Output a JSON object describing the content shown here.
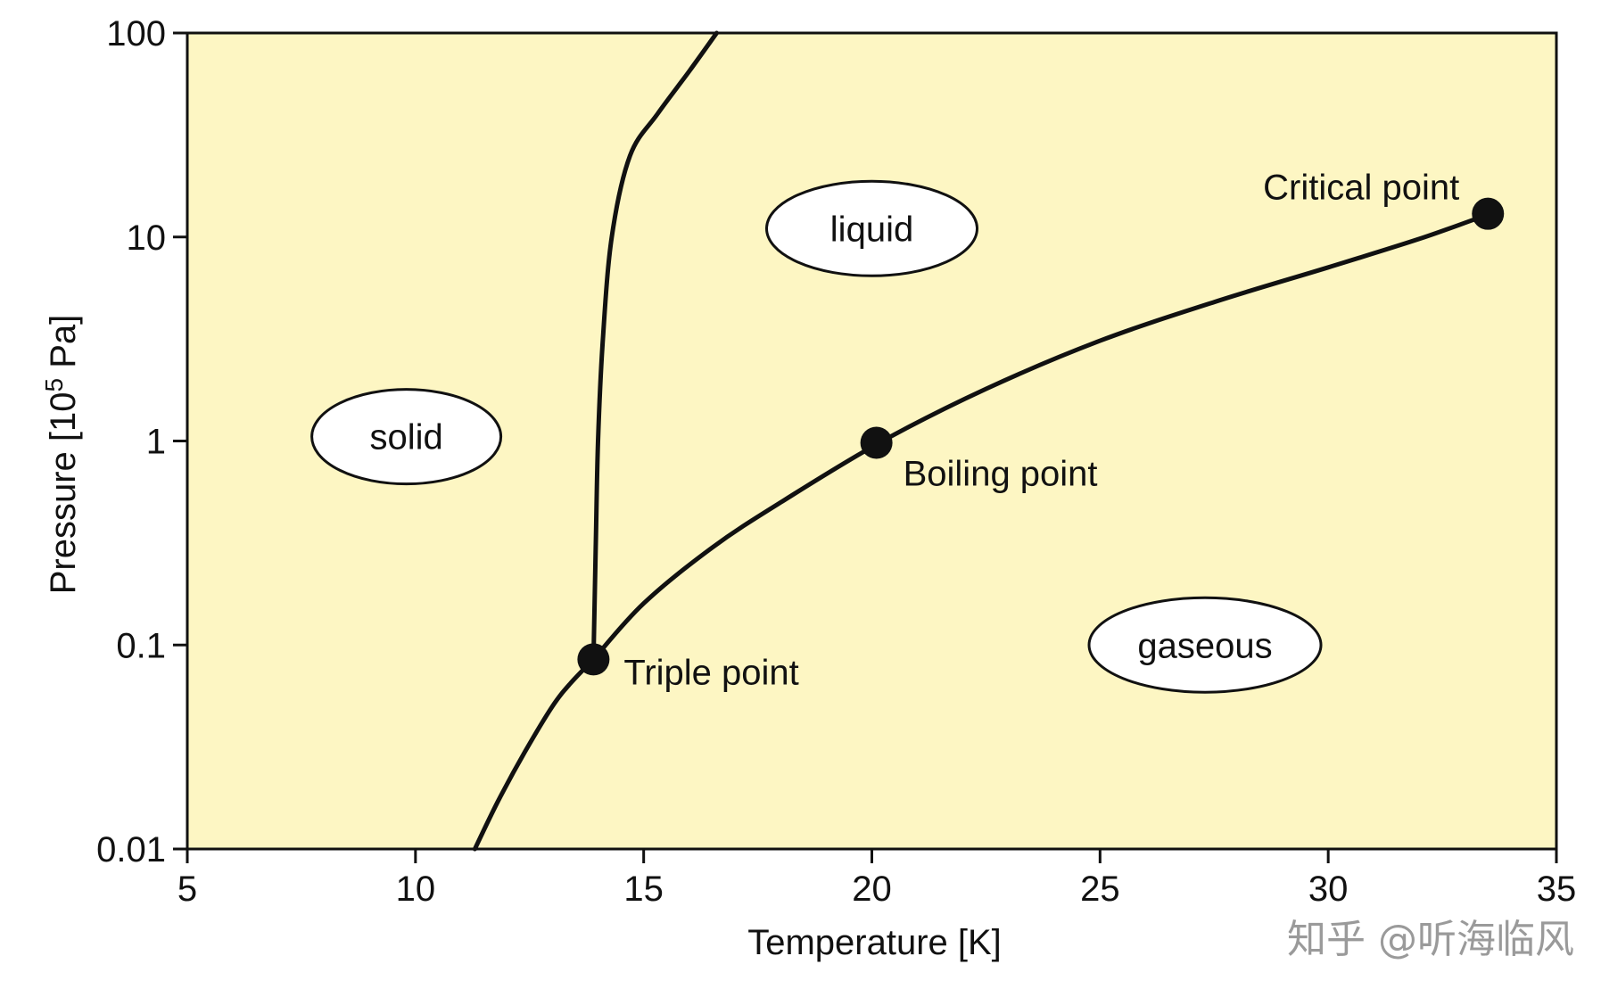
{
  "chart_data": {
    "type": "line",
    "xlabel": "Temperature [K]",
    "ylabel_main": "Pressure [10",
    "ylabel_sup": "5",
    "ylabel_unit": " Pa]",
    "xlim": [
      5,
      35
    ],
    "ylim": [
      0.01,
      100
    ],
    "yscale": "log",
    "grid": false,
    "xticks": [
      5,
      10,
      15,
      20,
      25,
      30,
      35
    ],
    "yticks": [
      0.01,
      0.1,
      1,
      10,
      100
    ],
    "ytick_labels": [
      "0.01",
      "0.1",
      "1",
      "10",
      "100"
    ],
    "series": [
      {
        "x": [
          11.3,
          11.8,
          12.4,
          13.0,
          13.4,
          13.9
        ],
        "y": [
          0.01,
          0.017,
          0.03,
          0.05,
          0.065,
          0.085
        ]
      },
      {
        "x": [
          13.9,
          13.95,
          14.0,
          14.1,
          14.3,
          14.7,
          15.3,
          16.0,
          16.6
        ],
        "y": [
          0.085,
          0.3,
          1.0,
          3.0,
          10,
          25,
          40,
          65,
          100
        ]
      },
      {
        "x": [
          13.9,
          15.0,
          16.5,
          18.0,
          20.2,
          22.5,
          25.0,
          27.5,
          30.0,
          32.0,
          33.5
        ],
        "y": [
          0.085,
          0.16,
          0.3,
          0.5,
          0.99,
          1.8,
          3.1,
          4.8,
          7.1,
          9.8,
          12.9
        ]
      }
    ],
    "points": [
      {
        "label": "Triple point",
        "x": 13.9,
        "y": 0.085
      },
      {
        "label": "Boiling point",
        "x": 20.1,
        "y": 0.98
      },
      {
        "label": "Critical point",
        "x": 33.5,
        "y": 13.0
      }
    ],
    "regions": [
      {
        "label": "solid",
        "x": 9.8,
        "y": 1.05
      },
      {
        "label": "liquid",
        "x": 20.0,
        "y": 11.0
      },
      {
        "label": "gaseous",
        "x": 27.3,
        "y": 0.1
      }
    ],
    "colors": {
      "plot_background": "#fdf6c3",
      "line": "#111111",
      "region_fill": "#ffffff"
    }
  },
  "watermark": "知乎 @听海临风"
}
